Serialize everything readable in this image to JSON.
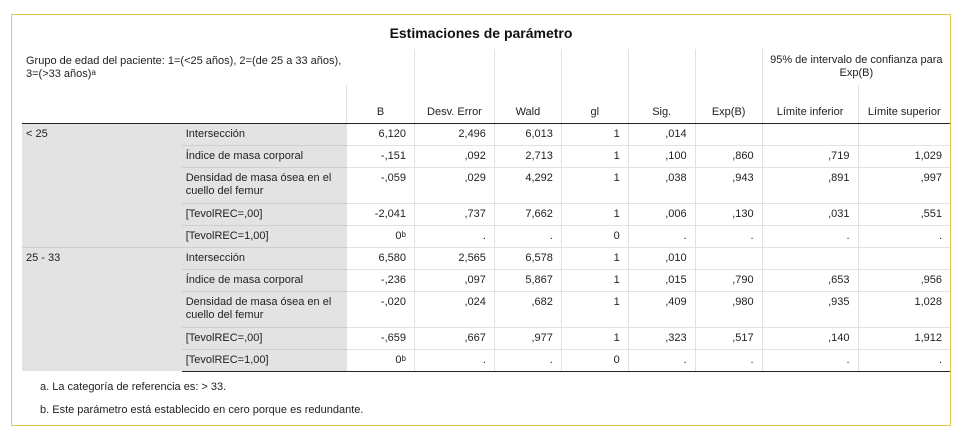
{
  "title": "Estimaciones de parámetro",
  "header": {
    "group_label": "Grupo de edad del paciente: 1=(<25 años), 2=(de 25 a 33 años), 3=(>33 años)",
    "group_label_sup": "a",
    "ci_label": "95% de intervalo de confianza para Exp(B)",
    "columns": [
      "B",
      "Desv. Error",
      "Wald",
      "gl",
      "Sig.",
      "Exp(B)",
      "Límite inferior",
      "Límite superior"
    ]
  },
  "groups": [
    {
      "name": "< 25",
      "rows": [
        {
          "label": "Intersección",
          "b": "6,120",
          "b_sup": "",
          "se": "2,496",
          "wald": "6,013",
          "gl": "1",
          "sig": ",014",
          "expb": "",
          "lo": "",
          "hi": ""
        },
        {
          "label": "Índice de masa corporal",
          "b": "-,151",
          "b_sup": "",
          "se": ",092",
          "wald": "2,713",
          "gl": "1",
          "sig": ",100",
          "expb": ",860",
          "lo": ",719",
          "hi": "1,029"
        },
        {
          "label": "Densidad de masa ósea en el cuello del femur",
          "b": "-,059",
          "b_sup": "",
          "se": ",029",
          "wald": "4,292",
          "gl": "1",
          "sig": ",038",
          "expb": ",943",
          "lo": ",891",
          "hi": ",997"
        },
        {
          "label": "[TevolREC=,00]",
          "b": "-2,041",
          "b_sup": "",
          "se": ",737",
          "wald": "7,662",
          "gl": "1",
          "sig": ",006",
          "expb": ",130",
          "lo": ",031",
          "hi": ",551"
        },
        {
          "label": "[TevolREC=1,00]",
          "b": "0",
          "b_sup": "b",
          "se": ".",
          "wald": ".",
          "gl": "0",
          "sig": ".",
          "expb": ".",
          "lo": ".",
          "hi": "."
        }
      ]
    },
    {
      "name": "25 - 33",
      "rows": [
        {
          "label": "Intersección",
          "b": "6,580",
          "b_sup": "",
          "se": "2,565",
          "wald": "6,578",
          "gl": "1",
          "sig": ",010",
          "expb": "",
          "lo": "",
          "hi": ""
        },
        {
          "label": "Índice de masa corporal",
          "b": "-,236",
          "b_sup": "",
          "se": ",097",
          "wald": "5,867",
          "gl": "1",
          "sig": ",015",
          "expb": ",790",
          "lo": ",653",
          "hi": ",956"
        },
        {
          "label": "Densidad de masa ósea en el cuello del femur",
          "b": "-,020",
          "b_sup": "",
          "se": ",024",
          "wald": ",682",
          "gl": "1",
          "sig": ",409",
          "expb": ",980",
          "lo": ",935",
          "hi": "1,028"
        },
        {
          "label": "[TevolREC=,00]",
          "b": "-,659",
          "b_sup": "",
          "se": ",667",
          "wald": ",977",
          "gl": "1",
          "sig": ",323",
          "expb": ",517",
          "lo": ",140",
          "hi": "1,912"
        },
        {
          "label": "[TevolREC=1,00]",
          "b": "0",
          "b_sup": "b",
          "se": ".",
          "wald": ".",
          "gl": "0",
          "sig": ".",
          "expb": ".",
          "lo": ".",
          "hi": "."
        }
      ]
    }
  ],
  "footnotes": [
    "a. La categoría de referencia es: > 33.",
    "b. Este parámetro está establecido en cero porque es redundante."
  ]
}
